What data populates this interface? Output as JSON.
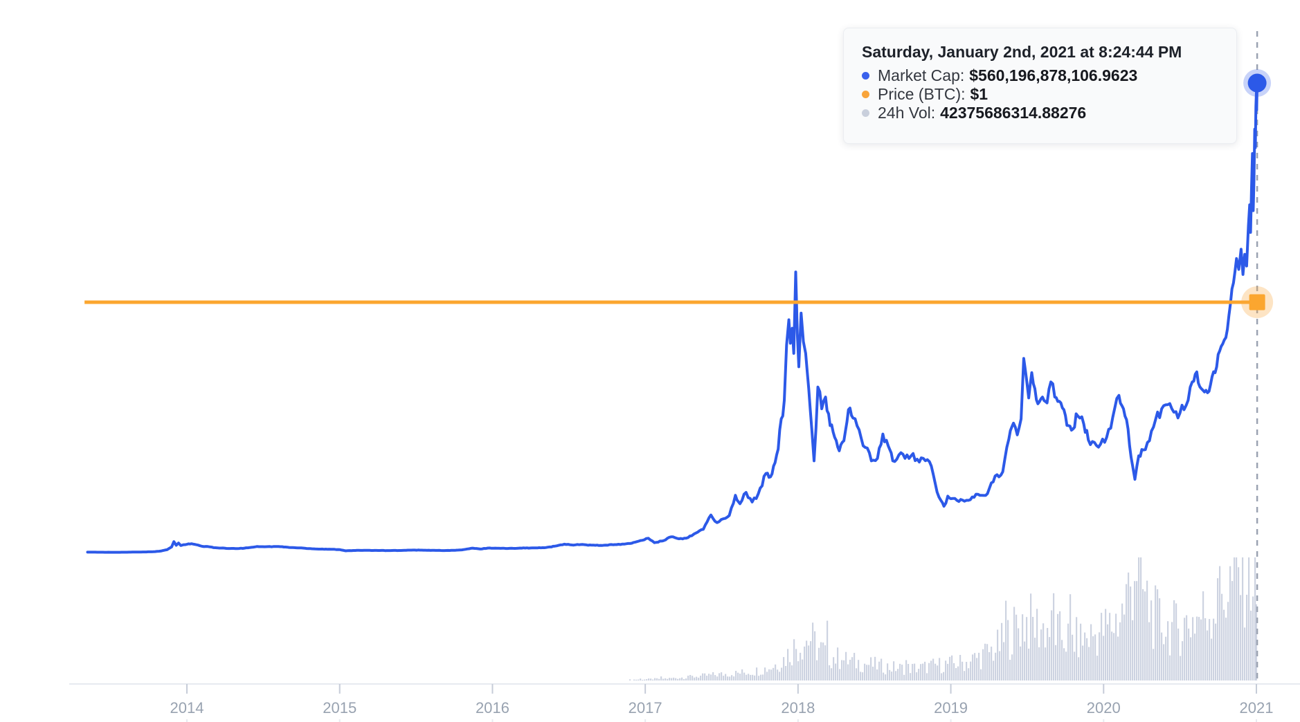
{
  "page": {
    "background": "#ffffff"
  },
  "tooltip": {
    "title": "Saturday, January 2nd, 2021 at 8:24:44 PM",
    "rows": [
      {
        "label": "Market Cap:",
        "value": "$560,196,878,106.9623",
        "dot_color": "#3a61ec"
      },
      {
        "label": "Price (BTC):",
        "value": "$1",
        "dot_color": "#f8a43b"
      },
      {
        "label": "24h Vol:",
        "value": "42375686314.88276",
        "dot_color": "#c9cfdc"
      }
    ]
  },
  "chart_data": {
    "type": "line",
    "title": "",
    "xlabel": "",
    "ylabel": "",
    "x_axis": {
      "tick_labels": [
        "2014",
        "2015",
        "2016",
        "2017",
        "2018",
        "2019",
        "2020",
        "2021"
      ],
      "range": [
        2013.33,
        2021.05
      ]
    },
    "grid": false,
    "legend": "tooltip-only",
    "crosshair": {
      "t": 2021.005,
      "date": "2021-01-02 20:24:44",
      "marketcap_usd": 560196878106.9623,
      "price_btc": 1,
      "vol_24h": 42375686314.88276
    },
    "series": [
      {
        "name": "Market Cap",
        "unit": "USD billions",
        "color": "#2c59e8",
        "style": "line",
        "points": [
          [
            2013.35,
            1.3
          ],
          [
            2013.45,
            1.2
          ],
          [
            2013.55,
            1.15
          ],
          [
            2013.62,
            1.3
          ],
          [
            2013.7,
            1.5
          ],
          [
            2013.78,
            1.8
          ],
          [
            2013.83,
            2.6
          ],
          [
            2013.87,
            4.2
          ],
          [
            2013.9,
            7.5
          ],
          [
            2013.915,
            13.8
          ],
          [
            2013.93,
            9.5
          ],
          [
            2013.945,
            12.2
          ],
          [
            2013.96,
            9.2
          ],
          [
            2013.98,
            10.2
          ],
          [
            2014.0,
            10.6
          ],
          [
            2014.03,
            11.4
          ],
          [
            2014.06,
            10.2
          ],
          [
            2014.1,
            8.2
          ],
          [
            2014.15,
            7.6
          ],
          [
            2014.2,
            6.4
          ],
          [
            2014.27,
            5.7
          ],
          [
            2014.33,
            5.5
          ],
          [
            2014.4,
            6.5
          ],
          [
            2014.46,
            8.1
          ],
          [
            2014.52,
            7.8
          ],
          [
            2014.6,
            8.0
          ],
          [
            2014.68,
            6.8
          ],
          [
            2014.76,
            6.2
          ],
          [
            2014.84,
            5.1
          ],
          [
            2014.92,
            4.8
          ],
          [
            2015.0,
            4.4
          ],
          [
            2015.04,
            2.9
          ],
          [
            2015.09,
            3.3
          ],
          [
            2015.16,
            3.5
          ],
          [
            2015.24,
            3.4
          ],
          [
            2015.32,
            3.2
          ],
          [
            2015.4,
            3.3
          ],
          [
            2015.48,
            3.8
          ],
          [
            2015.56,
            3.6
          ],
          [
            2015.64,
            3.4
          ],
          [
            2015.72,
            3.3
          ],
          [
            2015.8,
            4.0
          ],
          [
            2015.87,
            6.1
          ],
          [
            2015.92,
            5.0
          ],
          [
            2015.97,
            6.2
          ],
          [
            2016.03,
            6.0
          ],
          [
            2016.1,
            5.7
          ],
          [
            2016.18,
            6.2
          ],
          [
            2016.26,
            6.3
          ],
          [
            2016.34,
            6.6
          ],
          [
            2016.42,
            8.8
          ],
          [
            2016.47,
            10.8
          ],
          [
            2016.52,
            9.9
          ],
          [
            2016.58,
            10.4
          ],
          [
            2016.65,
            9.6
          ],
          [
            2016.72,
            9.3
          ],
          [
            2016.8,
            10.3
          ],
          [
            2016.9,
            11.6
          ],
          [
            2016.98,
            15.4
          ],
          [
            2017.02,
            17.9
          ],
          [
            2017.06,
            12.6
          ],
          [
            2017.12,
            15.0
          ],
          [
            2017.17,
            19.6
          ],
          [
            2017.22,
            17.2
          ],
          [
            2017.28,
            18.6
          ],
          [
            2017.33,
            24.0
          ],
          [
            2017.38,
            28.5
          ],
          [
            2017.43,
            45.5
          ],
          [
            2017.47,
            36.5
          ],
          [
            2017.51,
            41.0
          ],
          [
            2017.55,
            45.0
          ],
          [
            2017.59,
            69.0
          ],
          [
            2017.62,
            59.0
          ],
          [
            2017.66,
            72.5
          ],
          [
            2017.7,
            61.0
          ],
          [
            2017.74,
            71.0
          ],
          [
            2017.79,
            95.0
          ],
          [
            2017.82,
            91.0
          ],
          [
            2017.85,
            108
          ],
          [
            2017.87,
            124
          ],
          [
            2017.89,
            160
          ],
          [
            2017.91,
            182
          ],
          [
            2017.925,
            248
          ],
          [
            2017.94,
            278
          ],
          [
            2017.95,
            250
          ],
          [
            2017.962,
            268
          ],
          [
            2017.972,
            238
          ],
          [
            2017.985,
            335
          ],
          [
            2017.995,
            262
          ],
          [
            2018.005,
            222
          ],
          [
            2018.02,
            286
          ],
          [
            2018.035,
            252
          ],
          [
            2018.05,
            238
          ],
          [
            2018.07,
            196
          ],
          [
            2018.09,
            148
          ],
          [
            2018.105,
            110
          ],
          [
            2018.13,
            198
          ],
          [
            2018.155,
            172
          ],
          [
            2018.18,
            186
          ],
          [
            2018.21,
            152
          ],
          [
            2018.24,
            138
          ],
          [
            2018.27,
            122
          ],
          [
            2018.3,
            134
          ],
          [
            2018.33,
            171
          ],
          [
            2018.36,
            161
          ],
          [
            2018.4,
            147
          ],
          [
            2018.44,
            126
          ],
          [
            2018.48,
            110
          ],
          [
            2018.52,
            113
          ],
          [
            2018.555,
            142
          ],
          [
            2018.59,
            128
          ],
          [
            2018.62,
            110
          ],
          [
            2018.66,
            117
          ],
          [
            2018.7,
            113
          ],
          [
            2018.74,
            116
          ],
          [
            2018.78,
            112
          ],
          [
            2018.82,
            113
          ],
          [
            2018.86,
            109
          ],
          [
            2018.885,
            94
          ],
          [
            2018.91,
            73
          ],
          [
            2018.935,
            63
          ],
          [
            2018.955,
            56
          ],
          [
            2018.98,
            68
          ],
          [
            2019.0,
            65
          ],
          [
            2019.04,
            63
          ],
          [
            2019.09,
            62
          ],
          [
            2019.14,
            67
          ],
          [
            2019.19,
            69
          ],
          [
            2019.24,
            71
          ],
          [
            2019.29,
            92
          ],
          [
            2019.34,
            97
          ],
          [
            2019.38,
            136
          ],
          [
            2019.41,
            155
          ],
          [
            2019.435,
            141
          ],
          [
            2019.46,
            160
          ],
          [
            2019.477,
            232
          ],
          [
            2019.495,
            208
          ],
          [
            2019.51,
            185
          ],
          [
            2019.53,
            215
          ],
          [
            2019.55,
            196
          ],
          [
            2019.57,
            178
          ],
          [
            2019.6,
            186
          ],
          [
            2019.63,
            179
          ],
          [
            2019.655,
            204
          ],
          [
            2019.68,
            186
          ],
          [
            2019.71,
            181
          ],
          [
            2019.74,
            171
          ],
          [
            2019.77,
            152
          ],
          [
            2019.8,
            148
          ],
          [
            2019.82,
            166
          ],
          [
            2019.845,
            161
          ],
          [
            2019.87,
            154
          ],
          [
            2019.9,
            135
          ],
          [
            2019.94,
            132
          ],
          [
            2019.98,
            130
          ],
          [
            2020.02,
            138
          ],
          [
            2020.06,
            162
          ],
          [
            2020.1,
            188
          ],
          [
            2020.13,
            172
          ],
          [
            2020.16,
            148
          ],
          [
            2020.19,
            104
          ],
          [
            2020.205,
            88
          ],
          [
            2020.23,
            116
          ],
          [
            2020.26,
            123
          ],
          [
            2020.3,
            134
          ],
          [
            2020.34,
            159
          ],
          [
            2020.38,
            172
          ],
          [
            2020.42,
            177
          ],
          [
            2020.46,
            168
          ],
          [
            2020.5,
            167
          ],
          [
            2020.54,
            176
          ],
          [
            2020.58,
            204
          ],
          [
            2020.61,
            216
          ],
          [
            2020.64,
            196
          ],
          [
            2020.67,
            194
          ],
          [
            2020.7,
            201
          ],
          [
            2020.73,
            215
          ],
          [
            2020.76,
            241
          ],
          [
            2020.79,
            254
          ],
          [
            2020.82,
            283
          ],
          [
            2020.85,
            322
          ],
          [
            2020.87,
            351
          ],
          [
            2020.885,
            338
          ],
          [
            2020.9,
            362
          ],
          [
            2020.912,
            332
          ],
          [
            2020.924,
            356
          ],
          [
            2020.936,
            342
          ],
          [
            2020.948,
            390
          ],
          [
            2020.956,
            415
          ],
          [
            2020.962,
            382
          ],
          [
            2020.968,
            432
          ],
          [
            2020.974,
            476
          ],
          [
            2020.979,
            408
          ],
          [
            2020.984,
            444
          ],
          [
            2020.989,
            505
          ],
          [
            2020.993,
            483
          ],
          [
            2020.997,
            532
          ],
          [
            2021.0,
            549
          ],
          [
            2021.002,
            528
          ],
          [
            2021.005,
            560
          ]
        ]
      },
      {
        "name": "Price (BTC)",
        "unit": "BTC",
        "color": "#fba62f",
        "style": "horizontal-line",
        "constant_value": 1,
        "x_range": [
          2013.33,
          2021.005
        ]
      },
      {
        "name": "24h Vol",
        "unit": "USD billions per day",
        "color": "#cdd3e1",
        "style": "bars",
        "envelope_points": [
          [
            2016.85,
            0.3
          ],
          [
            2017.0,
            0.6
          ],
          [
            2017.15,
            1.0
          ],
          [
            2017.3,
            1.8
          ],
          [
            2017.45,
            2.8
          ],
          [
            2017.6,
            3.6
          ],
          [
            2017.72,
            4.6
          ],
          [
            2017.82,
            6.5
          ],
          [
            2017.9,
            10
          ],
          [
            2017.97,
            16
          ],
          [
            2018.03,
            19
          ],
          [
            2018.08,
            21
          ],
          [
            2018.13,
            16
          ],
          [
            2018.2,
            12.5
          ],
          [
            2018.3,
            10
          ],
          [
            2018.42,
            8.5
          ],
          [
            2018.55,
            7
          ],
          [
            2018.68,
            6
          ],
          [
            2018.8,
            6.2
          ],
          [
            2018.9,
            7.5
          ],
          [
            2019.0,
            8.2
          ],
          [
            2019.1,
            9
          ],
          [
            2019.2,
            12
          ],
          [
            2019.3,
            16
          ],
          [
            2019.4,
            24
          ],
          [
            2019.48,
            30
          ],
          [
            2019.55,
            27
          ],
          [
            2019.65,
            25
          ],
          [
            2019.75,
            21
          ],
          [
            2019.85,
            20
          ],
          [
            2019.95,
            23
          ],
          [
            2020.05,
            27
          ],
          [
            2020.12,
            33
          ],
          [
            2020.18,
            48
          ],
          [
            2020.21,
            62
          ],
          [
            2020.26,
            42
          ],
          [
            2020.33,
            31
          ],
          [
            2020.42,
            26
          ],
          [
            2020.5,
            26
          ],
          [
            2020.58,
            30
          ],
          [
            2020.66,
            33
          ],
          [
            2020.74,
            38
          ],
          [
            2020.82,
            46
          ],
          [
            2020.9,
            54
          ],
          [
            2020.97,
            56
          ],
          [
            2021.005,
            44
          ]
        ],
        "last_bar_value": 42.375686314
      }
    ],
    "colors": {
      "market_cap_line": "#2c59e8",
      "marker_halo_blue": "rgba(59,97,234,0.28)",
      "price_line": "#fba62f",
      "marker_halo_orange": "rgba(250,166,60,0.30)",
      "volume_bar": "#cdd3e1",
      "crosshair_dash": "#9aa2b1",
      "axis_line": "#e7eaf0",
      "tick_mark": "#c6ccd8",
      "tick_label": "#98a2b0"
    }
  }
}
